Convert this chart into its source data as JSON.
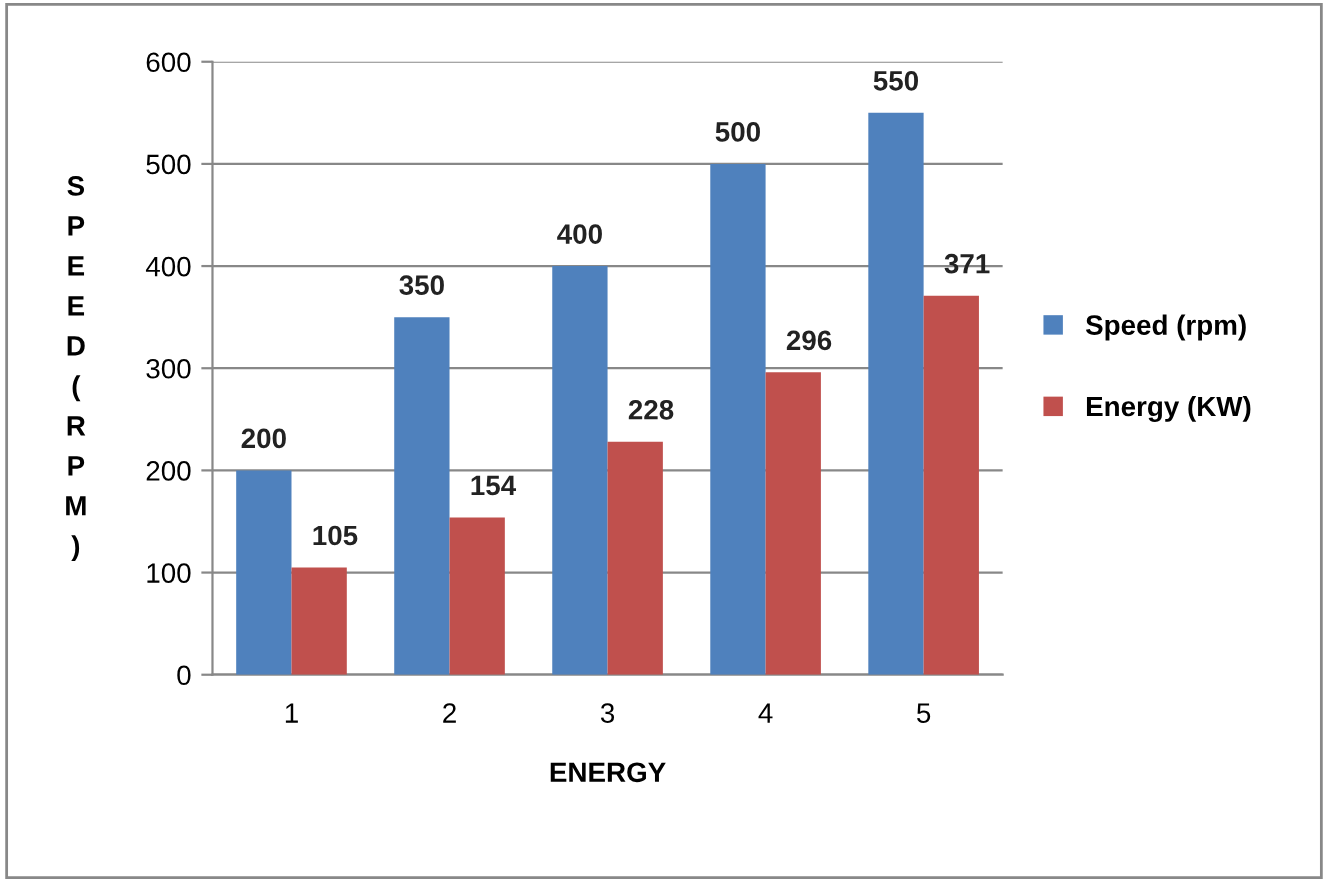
{
  "chart_data": {
    "type": "bar",
    "xlabel": "ENERGY",
    "ylabel": "SPEED(RPM)",
    "categories": [
      "1",
      "2",
      "3",
      "4",
      "5"
    ],
    "series": [
      {
        "name": "Speed (rpm)",
        "color": "#4f81bd",
        "values": [
          200,
          350,
          400,
          500,
          550
        ]
      },
      {
        "name": "Energy (KW)",
        "color": "#c0504d",
        "values": [
          105,
          154,
          228,
          296,
          371
        ]
      }
    ],
    "ylim": [
      0,
      600
    ],
    "yticks": [
      0,
      100,
      200,
      300,
      400,
      500,
      600
    ],
    "grid": "y",
    "legend": "right",
    "data_labels": true
  }
}
